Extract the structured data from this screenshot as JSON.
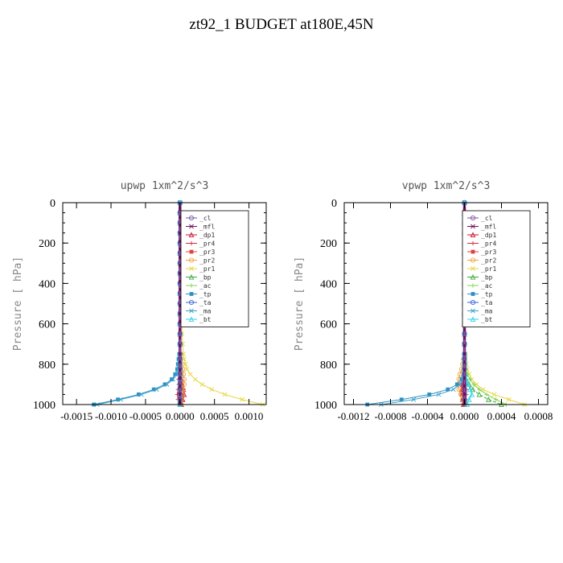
{
  "page_title": "zt92_1  BUDGET at180E,45N",
  "colors": {
    "_cl": "#7d4fa7",
    "_mfl": "#6e0f5a",
    "_dp1": "#c8102e",
    "_pr4": "#d0283b",
    "_pr3": "#e0433f",
    "_pr2": "#f2a13c",
    "_pr1": "#e6d640",
    "_bp": "#3faa3a",
    "_ac": "#7fd24d",
    "_tp": "#2f8fc4",
    "_ta": "#3b5ed8",
    "_ma": "#3aa0c8",
    "_bt": "#30d5e6"
  },
  "chart_data": [
    {
      "type": "line",
      "title": "upwp   1xm^2/s^3",
      "ylabel": "Pressure [ hPa]",
      "y_reversed": true,
      "ylim": [
        1000,
        0
      ],
      "yticks": [
        0,
        200,
        400,
        600,
        800,
        1000
      ],
      "xlim": [
        -0.0017,
        0.00125
      ],
      "xtick_values": [
        -0.0015,
        -0.001,
        -0.0005,
        0.0,
        0.0005,
        0.001
      ],
      "xtick_labels": [
        "-0.0015",
        "-0.0010",
        "-0.0005",
        "0.0000",
        "0.0005",
        "0.0010"
      ],
      "legend_position": "top-right",
      "levels": [
        0,
        50,
        100,
        150,
        200,
        250,
        300,
        350,
        400,
        450,
        500,
        550,
        600,
        650,
        700,
        750,
        775,
        800,
        825,
        850,
        875,
        900,
        925,
        950,
        975,
        1000
      ],
      "series": [
        {
          "name": "_cl",
          "values": [
            0,
            0,
            0,
            0,
            0,
            0,
            0,
            0,
            0,
            0,
            0,
            0,
            0,
            0,
            0,
            0,
            0,
            0,
            0,
            0,
            0,
            0,
            0,
            0,
            0,
            0
          ]
        },
        {
          "name": "_mfl",
          "values": [
            0,
            0,
            0,
            0,
            0,
            0,
            0,
            0,
            0,
            0,
            0,
            0,
            0,
            0,
            0,
            0,
            0,
            0,
            0,
            0,
            0,
            0,
            0,
            0,
            0,
            0
          ]
        },
        {
          "name": "_dp1",
          "values": [
            0,
            0,
            0,
            0,
            0,
            0,
            0,
            0,
            0,
            0,
            0,
            0,
            0,
            0,
            0,
            0,
            0,
            0,
            0,
            1e-05,
            2e-05,
            3e-05,
            5e-05,
            6e-05,
            4e-05,
            2e-05
          ]
        },
        {
          "name": "_pr4",
          "values": [
            0,
            0,
            0,
            0,
            0,
            0,
            0,
            0,
            0,
            0,
            0,
            0,
            0,
            0,
            0,
            0,
            0,
            0,
            0,
            -1e-05,
            -2e-05,
            -2e-05,
            -3e-05,
            -4e-05,
            -3e-05,
            -2e-05
          ]
        },
        {
          "name": "_pr3",
          "values": [
            0,
            0,
            0,
            0,
            0,
            0,
            0,
            0,
            0,
            0,
            0,
            0,
            0,
            0,
            0,
            0,
            0,
            0,
            0,
            1e-05,
            1e-05,
            2e-05,
            3e-05,
            4e-05,
            3e-05,
            2e-05
          ]
        },
        {
          "name": "_pr2",
          "values": [
            0,
            0,
            0,
            0,
            0,
            0,
            0,
            0,
            0,
            0,
            0,
            0,
            0,
            0,
            0,
            1e-05,
            2e-05,
            3e-05,
            4e-05,
            5e-05,
            6e-05,
            6e-05,
            5e-05,
            3e-05,
            2e-05,
            1e-05
          ]
        },
        {
          "name": "_pr1",
          "values": [
            0,
            1e-05,
            1e-05,
            1e-05,
            1e-05,
            1e-05,
            2e-05,
            2e-05,
            2e-05,
            2e-05,
            2e-05,
            2e-05,
            3e-05,
            3e-05,
            4e-05,
            5e-05,
            6e-05,
            8e-05,
            0.0001,
            0.00015,
            0.00022,
            0.00032,
            0.00046,
            0.00065,
            0.0009,
            0.0012
          ]
        },
        {
          "name": "_bp",
          "values": [
            0,
            0,
            0,
            0,
            0,
            0,
            0,
            0,
            0,
            0,
            0,
            0,
            0,
            0,
            0,
            0,
            0,
            0,
            0,
            0,
            0,
            0,
            0,
            0,
            0,
            0
          ]
        },
        {
          "name": "_ac",
          "values": [
            0,
            0,
            0,
            0,
            0,
            0,
            0,
            0,
            0,
            0,
            0,
            0,
            0,
            0,
            0,
            0,
            0,
            0,
            0,
            0,
            0,
            0,
            0,
            0,
            0,
            0
          ]
        },
        {
          "name": "_tp",
          "values": [
            0,
            0,
            0,
            0,
            0,
            0,
            0,
            0,
            0,
            0,
            0,
            0,
            0,
            0,
            0,
            -1e-05,
            -2e-05,
            -3e-05,
            -4e-05,
            -7e-05,
            -0.00012,
            -0.00022,
            -0.00038,
            -0.0006,
            -0.0009,
            -0.00125
          ]
        },
        {
          "name": "_ta",
          "values": [
            0,
            0,
            0,
            0,
            0,
            0,
            0,
            0,
            0,
            0,
            0,
            0,
            0,
            0,
            0,
            0,
            0,
            0,
            0,
            0,
            0,
            0,
            0,
            0,
            0,
            0
          ]
        },
        {
          "name": "_ma",
          "values": [
            0,
            0,
            0,
            0,
            0,
            0,
            0,
            0,
            0,
            0,
            0,
            0,
            0,
            0,
            0,
            0,
            -1e-05,
            -2e-05,
            -3e-05,
            -5e-05,
            -0.0001,
            -0.00019,
            -0.00034,
            -0.00056,
            -0.00086,
            -0.0012
          ]
        },
        {
          "name": "_bt",
          "values": [
            0,
            0,
            0,
            0,
            0,
            0,
            0,
            0,
            0,
            0,
            0,
            0,
            0,
            0,
            0,
            0,
            0,
            0,
            0,
            0,
            0,
            0,
            0,
            0,
            0,
            0
          ]
        }
      ]
    },
    {
      "type": "line",
      "title": "vpwp   1xm^2/s^3",
      "ylabel": "Pressure [ hPa]",
      "y_reversed": true,
      "ylim": [
        1000,
        0
      ],
      "yticks": [
        0,
        200,
        400,
        600,
        800,
        1000
      ],
      "xlim": [
        -0.0013,
        0.0009
      ],
      "xtick_values": [
        -0.0012,
        -0.0008,
        -0.0004,
        0.0,
        0.0004,
        0.0008
      ],
      "xtick_labels": [
        "-0.0012",
        "-0.0008",
        "-0.0004",
        "0.0000",
        "0.0004",
        "0.0008"
      ],
      "legend_position": "top-right",
      "levels": [
        0,
        50,
        100,
        150,
        200,
        250,
        300,
        350,
        400,
        450,
        500,
        550,
        600,
        650,
        700,
        750,
        775,
        800,
        825,
        850,
        875,
        900,
        925,
        950,
        975,
        1000
      ],
      "series": [
        {
          "name": "_cl",
          "values": [
            0,
            0,
            0,
            0,
            0,
            0,
            0,
            0,
            0,
            0,
            0,
            0,
            0,
            0,
            0,
            0,
            0,
            0,
            0,
            0,
            0,
            0,
            0,
            0,
            0,
            0
          ]
        },
        {
          "name": "_mfl",
          "values": [
            0,
            0,
            0,
            0,
            0,
            0,
            0,
            0,
            0,
            0,
            0,
            0,
            0,
            0,
            0,
            0,
            0,
            0,
            0,
            0,
            0,
            0,
            0,
            0,
            0,
            0
          ]
        },
        {
          "name": "_dp1",
          "values": [
            0,
            0,
            0,
            0,
            0,
            0,
            0,
            0,
            0,
            0,
            0,
            0,
            0,
            0,
            0,
            0,
            0,
            0,
            0,
            -1e-05,
            -1e-05,
            -2e-05,
            -3e-05,
            -2e-05,
            -2e-05,
            -1e-05
          ]
        },
        {
          "name": "_pr4",
          "values": [
            0,
            0,
            0,
            0,
            0,
            0,
            0,
            0,
            0,
            0,
            0,
            0,
            0,
            0,
            0,
            0,
            0,
            0,
            0,
            1e-05,
            1e-05,
            1e-05,
            2e-05,
            2e-05,
            1e-05,
            1e-05
          ]
        },
        {
          "name": "_pr3",
          "values": [
            0,
            0,
            0,
            0,
            0,
            0,
            0,
            0,
            0,
            0,
            0,
            0,
            0,
            0,
            0,
            0,
            0,
            0,
            0,
            -1e-05,
            -1e-05,
            -2e-05,
            -2e-05,
            -3e-05,
            -2e-05,
            -1e-05
          ]
        },
        {
          "name": "_pr2",
          "values": [
            0,
            0,
            0,
            0,
            0,
            0,
            0,
            0,
            0,
            0,
            0,
            0,
            0,
            0,
            0,
            0,
            -1e-05,
            -2e-05,
            -3e-05,
            -5e-05,
            -6e-05,
            -7e-05,
            -6e-05,
            -4e-05,
            -2e-05,
            -1e-05
          ]
        },
        {
          "name": "_pr1",
          "values": [
            0,
            0,
            0,
            0,
            0,
            0,
            0,
            0,
            0,
            0,
            0,
            0,
            0,
            0,
            0,
            1e-05,
            1e-05,
            2e-05,
            3e-05,
            5e-05,
            8e-05,
            0.00013,
            0.0002,
            0.00032,
            0.00048,
            0.00065
          ]
        },
        {
          "name": "_bp",
          "values": [
            0,
            0,
            0,
            0,
            0,
            0,
            0,
            0,
            0,
            0,
            0,
            0,
            0,
            0,
            0,
            0,
            0,
            0,
            0,
            1e-05,
            2e-05,
            5e-05,
            9e-05,
            0.00016,
            0.00026,
            0.0004
          ]
        },
        {
          "name": "_ac",
          "values": [
            0,
            0,
            0,
            0,
            0,
            0,
            0,
            0,
            0,
            0,
            0,
            0,
            0,
            0,
            0,
            0,
            0,
            0,
            1e-05,
            3e-05,
            6e-05,
            0.0001,
            0.00016,
            0.00024,
            0.00034,
            0.00045
          ]
        },
        {
          "name": "_tp",
          "values": [
            0,
            0,
            0,
            0,
            0,
            0,
            0,
            0,
            0,
            0,
            0,
            0,
            0,
            0,
            0,
            0,
            0,
            0,
            0,
            -1e-05,
            -3e-05,
            -8e-05,
            -0.00018,
            -0.00038,
            -0.00068,
            -0.00105
          ]
        },
        {
          "name": "_ta",
          "values": [
            0,
            0,
            0,
            0,
            0,
            0,
            0,
            0,
            0,
            0,
            0,
            0,
            0,
            0,
            0,
            0,
            0,
            0,
            0,
            0,
            0,
            0,
            0,
            0,
            0,
            0
          ]
        },
        {
          "name": "_ma",
          "values": [
            0,
            0,
            0,
            0,
            0,
            0,
            0,
            0,
            0,
            0,
            0,
            0,
            0,
            0,
            0,
            0,
            0,
            0,
            0,
            -1e-05,
            -2e-05,
            -5e-05,
            -0.00012,
            -0.00028,
            -0.00055,
            -0.0009
          ]
        },
        {
          "name": "_bt",
          "values": [
            0,
            0,
            0,
            0,
            0,
            0,
            0,
            0,
            0,
            0,
            0,
            0,
            0,
            0,
            0,
            0,
            0,
            0,
            0,
            1e-05,
            2e-05,
            4e-05,
            6e-05,
            8e-05,
            5e-05,
            3e-05
          ]
        }
      ]
    }
  ]
}
